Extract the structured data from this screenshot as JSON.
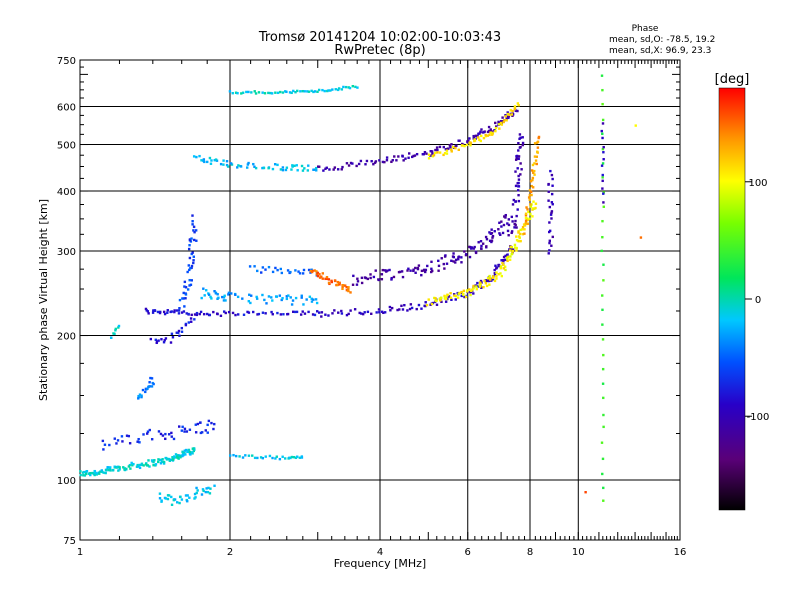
{
  "chart_data": {
    "type": "scatter",
    "title": "Tromsø 20141204 10:02:00-10:03:43",
    "subtitle": "RwPretec (8p)",
    "xlabel": "Frequency [MHz]",
    "ylabel": "Stationary phase Virtual Height [km]",
    "x_scale": "log",
    "y_scale": "log",
    "xlim": [
      1,
      16
    ],
    "ylim": [
      75,
      750
    ],
    "x_ticks": [
      1,
      2,
      4,
      6,
      8,
      10,
      16
    ],
    "y_ticks": [
      75,
      100,
      200,
      300,
      400,
      500,
      600,
      750
    ],
    "grid": true,
    "colorbar": {
      "label": "[deg]",
      "range": [
        -180,
        180
      ],
      "ticks": [
        100,
        0,
        -100
      ]
    },
    "stats": {
      "heading": "Phase",
      "line1": "mean, sd,O: -78.5, 19.2",
      "line2": "mean, sd,X:  96.9, 23.3"
    },
    "traces": [
      {
        "x": [
          1.0,
          1.1,
          1.2,
          1.35,
          1.5,
          1.6,
          1.7
        ],
        "y": [
          103,
          104,
          106,
          108,
          110,
          113,
          116
        ],
        "phase": -10,
        "jitter": 0.02,
        "n": 140
      },
      {
        "x": [
          1.1,
          1.3,
          1.5,
          1.7,
          1.85
        ],
        "y": [
          118,
          122,
          125,
          128,
          130
        ],
        "phase": -70,
        "jitter": 0.04,
        "n": 50
      },
      {
        "x": [
          1.45,
          1.55,
          1.7,
          1.85
        ],
        "y": [
          92,
          90,
          94,
          96
        ],
        "phase": -20,
        "jitter": 0.03,
        "n": 40
      },
      {
        "x": [
          1.3,
          1.37,
          1.4
        ],
        "y": [
          148,
          155,
          162
        ],
        "phase": -40,
        "jitter": 0.02,
        "n": 20
      },
      {
        "x": [
          2.0,
          2.3,
          2.6,
          2.8
        ],
        "y": [
          112,
          112,
          111,
          112
        ],
        "phase": -15,
        "jitter": 0.01,
        "n": 30
      },
      {
        "x": [
          1.15,
          1.2
        ],
        "y": [
          197,
          210
        ],
        "phase": -10,
        "jitter": 0.01,
        "n": 8
      },
      {
        "x": [
          1.4,
          1.5,
          1.6,
          1.7
        ],
        "y": [
          195,
          195,
          205,
          220
        ],
        "phase": -80,
        "jitter": 0.02,
        "n": 25
      },
      {
        "x": [
          1.35,
          1.5,
          1.7,
          2.0,
          2.5,
          3.0
        ],
        "y": [
          225,
          224,
          222,
          222,
          222,
          222
        ],
        "phase": -85,
        "jitter": 0.015,
        "n": 70
      },
      {
        "x": [
          1.6,
          1.65,
          1.68,
          1.7
        ],
        "y": [
          230,
          260,
          300,
          350
        ],
        "phase": -60,
        "jitter": 0.03,
        "n": 45
      },
      {
        "x": [
          1.75,
          2.0,
          2.5,
          3.0
        ],
        "y": [
          245,
          240,
          238,
          236
        ],
        "phase": -30,
        "jitter": 0.03,
        "n": 60
      },
      {
        "x": [
          3.0,
          4.0,
          5.0,
          6.0,
          6.7,
          7.3
        ],
        "y": [
          222,
          225,
          232,
          245,
          265,
          300
        ],
        "phase": -95,
        "jitter": 0.02,
        "n": 110
      },
      {
        "x": [
          2.2,
          2.6,
          3.0
        ],
        "y": [
          275,
          273,
          270
        ],
        "phase": -50,
        "jitter": 0.02,
        "n": 25
      },
      {
        "x": [
          3.5,
          4.5,
          5.5,
          6.5,
          7.3
        ],
        "y": [
          262,
          270,
          285,
          310,
          350
        ],
        "phase": -110,
        "jitter": 0.04,
        "n": 120
      },
      {
        "x": [
          7.3,
          7.5,
          7.6,
          7.7
        ],
        "y": [
          300,
          380,
          450,
          520
        ],
        "phase": -105,
        "jitter": 0.03,
        "n": 50
      },
      {
        "x": [
          2.9,
          3.2,
          3.5
        ],
        "y": [
          275,
          258,
          248
        ],
        "phase": 150,
        "jitter": 0.02,
        "n": 40
      },
      {
        "x": [
          5.0,
          6.0,
          7.0,
          7.6,
          8.2
        ],
        "y": [
          235,
          245,
          270,
          320,
          380
        ],
        "phase": 105,
        "jitter": 0.025,
        "n": 120
      },
      {
        "x": [
          7.8,
          8.1,
          8.3
        ],
        "y": [
          330,
          420,
          520
        ],
        "phase": 130,
        "jitter": 0.02,
        "n": 40
      },
      {
        "x": [
          1.7,
          2.0,
          2.5,
          3.0
        ],
        "y": [
          468,
          455,
          448,
          445
        ],
        "phase": -20,
        "jitter": 0.02,
        "n": 60
      },
      {
        "x": [
          3.0,
          4.0,
          5.0,
          6.0,
          6.8,
          7.5
        ],
        "y": [
          445,
          460,
          480,
          510,
          545,
          590
        ],
        "phase": -110,
        "jitter": 0.02,
        "n": 120
      },
      {
        "x": [
          5.0,
          6.0,
          6.8,
          7.6
        ],
        "y": [
          470,
          500,
          530,
          615
        ],
        "phase": 110,
        "jitter": 0.015,
        "n": 60
      },
      {
        "x": [
          2.0,
          2.5,
          3.0,
          3.6
        ],
        "y": [
          642,
          642,
          646,
          660
        ],
        "phase": -10,
        "jitter": 0.008,
        "n": 55
      },
      {
        "x": [
          8.8,
          8.8
        ],
        "y": [
          300,
          440
        ],
        "phase": -100,
        "jitter": 0.02,
        "n": 25
      },
      {
        "x": [
          11.2,
          11.2
        ],
        "y": [
          90,
          700
        ],
        "phase": 40,
        "jitter": 0.01,
        "n": 30
      },
      {
        "x": [
          11.2,
          11.2
        ],
        "y": [
          380,
          550
        ],
        "phase": -95,
        "jitter": 0.01,
        "n": 12
      },
      {
        "x": [
          13.3
        ],
        "y": [
          318
        ],
        "phase": 160,
        "jitter": 0.01,
        "n": 1
      },
      {
        "x": [
          13.0
        ],
        "y": [
          545
        ],
        "phase": 110,
        "jitter": 0.01,
        "n": 1
      },
      {
        "x": [
          10.3
        ],
        "y": [
          95
        ],
        "phase": 170,
        "jitter": 0.01,
        "n": 1
      }
    ]
  }
}
